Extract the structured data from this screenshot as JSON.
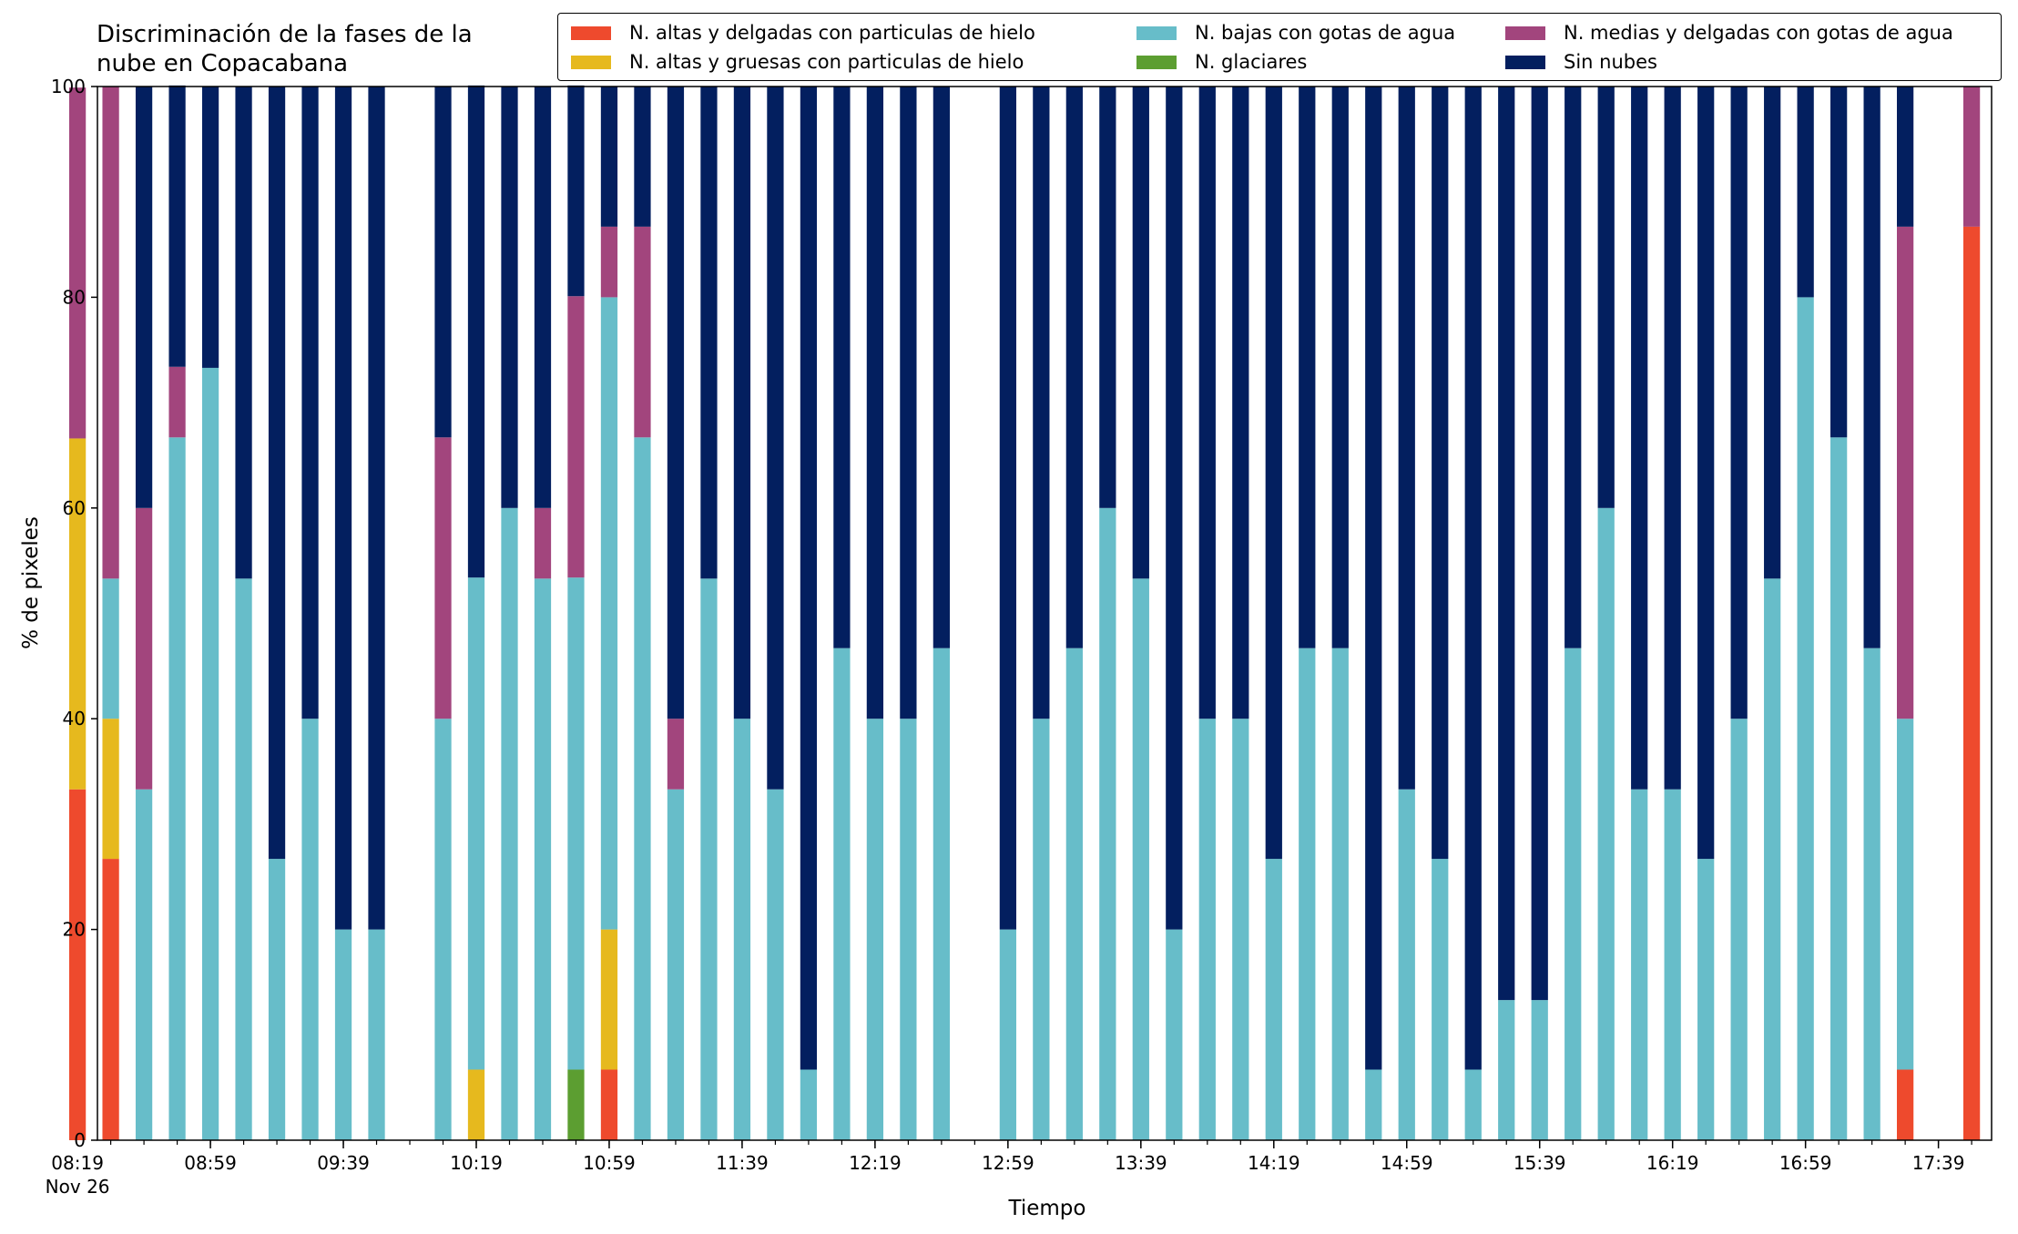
{
  "chart_data": {
    "type": "bar",
    "stacked": true,
    "title": "Discriminación de la fases de la\nnube en Copacabana",
    "xlabel": "Tiempo",
    "ylabel": "% de pixeles",
    "ylim": [
      0,
      100
    ],
    "yticks": [
      "0",
      "20",
      "40",
      "60",
      "80",
      "100"
    ],
    "date_label": "Nov 26",
    "xlim_minutes": [
      505,
      1075
    ],
    "xticks": [
      {
        "minute": 499,
        "label": "08:19"
      },
      {
        "minute": 539,
        "label": "08:59"
      },
      {
        "minute": 579,
        "label": "09:39"
      },
      {
        "minute": 619,
        "label": "10:19"
      },
      {
        "minute": 659,
        "label": "10:59"
      },
      {
        "minute": 699,
        "label": "11:39"
      },
      {
        "minute": 739,
        "label": "12:19"
      },
      {
        "minute": 779,
        "label": "12:59"
      },
      {
        "minute": 819,
        "label": "13:39"
      },
      {
        "minute": 859,
        "label": "14:19"
      },
      {
        "minute": 899,
        "label": "14:59"
      },
      {
        "minute": 939,
        "label": "15:39"
      },
      {
        "minute": 979,
        "label": "16:19"
      },
      {
        "minute": 1019,
        "label": "16:59"
      },
      {
        "minute": 1059,
        "label": "17:39"
      }
    ],
    "grid": false,
    "legend_position": "top-right",
    "series_order": [
      "altas_delgadas",
      "altas_gruesas",
      "glaciares",
      "bajas",
      "medias",
      "sin_nubes"
    ],
    "series": [
      {
        "key": "altas_delgadas",
        "name": "N. altas y delgadas con particulas de hielo",
        "color": "#EE4A2D"
      },
      {
        "key": "altas_gruesas",
        "name": "N. altas y gruesas con particulas de hielo",
        "color": "#E6B91E"
      },
      {
        "key": "bajas",
        "name": "N. bajas con gotas de agua",
        "color": "#67BDC9"
      },
      {
        "key": "glaciares",
        "name": "N. glaciares",
        "color": "#5C9E31"
      },
      {
        "key": "medias",
        "name": "N. medias y delgadas con gotas de agua",
        "color": "#A2457D"
      },
      {
        "key": "sin_nubes",
        "name": "Sin nubes",
        "color": "#031F5F"
      }
    ],
    "bar_width_minutes": 5,
    "bars": [
      {
        "time": "08:19",
        "altas_delgadas": 33.3,
        "altas_gruesas": 33.3,
        "glaciares": 0,
        "bajas": 0,
        "medias": 33.3,
        "sin_nubes": 0
      },
      {
        "time": "08:29",
        "altas_delgadas": 26.7,
        "altas_gruesas": 13.3,
        "glaciares": 0,
        "bajas": 13.3,
        "medias": 46.7,
        "sin_nubes": 0
      },
      {
        "time": "08:39",
        "altas_delgadas": 0,
        "altas_gruesas": 0,
        "glaciares": 0,
        "bajas": 33.3,
        "medias": 26.7,
        "sin_nubes": 40.0
      },
      {
        "time": "08:49",
        "altas_delgadas": 0,
        "altas_gruesas": 0,
        "glaciares": 0,
        "bajas": 66.7,
        "medias": 6.7,
        "sin_nubes": 26.7
      },
      {
        "time": "08:59",
        "altas_delgadas": 0,
        "altas_gruesas": 0,
        "glaciares": 0,
        "bajas": 73.3,
        "medias": 0,
        "sin_nubes": 26.7
      },
      {
        "time": "09:09",
        "altas_delgadas": 0,
        "altas_gruesas": 0,
        "glaciares": 0,
        "bajas": 53.3,
        "medias": 0,
        "sin_nubes": 46.7
      },
      {
        "time": "09:19",
        "altas_delgadas": 0,
        "altas_gruesas": 0,
        "glaciares": 0,
        "bajas": 26.7,
        "medias": 0,
        "sin_nubes": 73.3
      },
      {
        "time": "09:29",
        "altas_delgadas": 0,
        "altas_gruesas": 0,
        "glaciares": 0,
        "bajas": 40.0,
        "medias": 0,
        "sin_nubes": 60.0
      },
      {
        "time": "09:39",
        "altas_delgadas": 0,
        "altas_gruesas": 0,
        "glaciares": 0,
        "bajas": 20.0,
        "medias": 0,
        "sin_nubes": 80.0
      },
      {
        "time": "09:49",
        "altas_delgadas": 0,
        "altas_gruesas": 0,
        "glaciares": 0,
        "bajas": 20.0,
        "medias": 0,
        "sin_nubes": 80.0
      },
      {
        "time": "10:09",
        "altas_delgadas": 0,
        "altas_gruesas": 0,
        "glaciares": 0,
        "bajas": 40.0,
        "medias": 26.7,
        "sin_nubes": 33.3
      },
      {
        "time": "10:19",
        "altas_delgadas": 0,
        "altas_gruesas": 6.7,
        "glaciares": 0,
        "bajas": 46.7,
        "medias": 0,
        "sin_nubes": 46.7
      },
      {
        "time": "10:29",
        "altas_delgadas": 0,
        "altas_gruesas": 0,
        "glaciares": 0,
        "bajas": 60.0,
        "medias": 0,
        "sin_nubes": 40.0
      },
      {
        "time": "10:39",
        "altas_delgadas": 0,
        "altas_gruesas": 0,
        "glaciares": 0,
        "bajas": 53.3,
        "medias": 6.7,
        "sin_nubes": 40.0
      },
      {
        "time": "10:49",
        "altas_delgadas": 0,
        "altas_gruesas": 0,
        "glaciares": 6.7,
        "bajas": 46.7,
        "medias": 26.7,
        "sin_nubes": 20.0
      },
      {
        "time": "10:59",
        "altas_delgadas": 6.7,
        "altas_gruesas": 13.3,
        "glaciares": 0,
        "bajas": 60.0,
        "medias": 6.7,
        "sin_nubes": 13.3
      },
      {
        "time": "11:09",
        "altas_delgadas": 0,
        "altas_gruesas": 0,
        "glaciares": 0,
        "bajas": 66.7,
        "medias": 20.0,
        "sin_nubes": 13.3
      },
      {
        "time": "11:19",
        "altas_delgadas": 0,
        "altas_gruesas": 0,
        "glaciares": 0,
        "bajas": 33.3,
        "medias": 6.7,
        "sin_nubes": 60.0
      },
      {
        "time": "11:29",
        "altas_delgadas": 0,
        "altas_gruesas": 0,
        "glaciares": 0,
        "bajas": 53.3,
        "medias": 0,
        "sin_nubes": 46.7
      },
      {
        "time": "11:39",
        "altas_delgadas": 0,
        "altas_gruesas": 0,
        "glaciares": 0,
        "bajas": 40.0,
        "medias": 0,
        "sin_nubes": 60.0
      },
      {
        "time": "11:49",
        "altas_delgadas": 0,
        "altas_gruesas": 0,
        "glaciares": 0,
        "bajas": 33.3,
        "medias": 0,
        "sin_nubes": 66.7
      },
      {
        "time": "11:59",
        "altas_delgadas": 0,
        "altas_gruesas": 0,
        "glaciares": 0,
        "bajas": 6.7,
        "medias": 0,
        "sin_nubes": 93.3
      },
      {
        "time": "12:09",
        "altas_delgadas": 0,
        "altas_gruesas": 0,
        "glaciares": 0,
        "bajas": 46.7,
        "medias": 0,
        "sin_nubes": 53.3
      },
      {
        "time": "12:19",
        "altas_delgadas": 0,
        "altas_gruesas": 0,
        "glaciares": 0,
        "bajas": 40.0,
        "medias": 0,
        "sin_nubes": 60.0
      },
      {
        "time": "12:29",
        "altas_delgadas": 0,
        "altas_gruesas": 0,
        "glaciares": 0,
        "bajas": 40.0,
        "medias": 0,
        "sin_nubes": 60.0
      },
      {
        "time": "12:39",
        "altas_delgadas": 0,
        "altas_gruesas": 0,
        "glaciares": 0,
        "bajas": 46.7,
        "medias": 0,
        "sin_nubes": 53.3
      },
      {
        "time": "12:59",
        "altas_delgadas": 0,
        "altas_gruesas": 0,
        "glaciares": 0,
        "bajas": 20.0,
        "medias": 0,
        "sin_nubes": 80.0
      },
      {
        "time": "13:09",
        "altas_delgadas": 0,
        "altas_gruesas": 0,
        "glaciares": 0,
        "bajas": 40.0,
        "medias": 0,
        "sin_nubes": 60.0
      },
      {
        "time": "13:19",
        "altas_delgadas": 0,
        "altas_gruesas": 0,
        "glaciares": 0,
        "bajas": 46.7,
        "medias": 0,
        "sin_nubes": 53.3
      },
      {
        "time": "13:29",
        "altas_delgadas": 0,
        "altas_gruesas": 0,
        "glaciares": 0,
        "bajas": 60.0,
        "medias": 0,
        "sin_nubes": 40.0
      },
      {
        "time": "13:39",
        "altas_delgadas": 0,
        "altas_gruesas": 0,
        "glaciares": 0,
        "bajas": 53.3,
        "medias": 0,
        "sin_nubes": 46.7
      },
      {
        "time": "13:49",
        "altas_delgadas": 0,
        "altas_gruesas": 0,
        "glaciares": 0,
        "bajas": 20.0,
        "medias": 0,
        "sin_nubes": 80.0
      },
      {
        "time": "13:59",
        "altas_delgadas": 0,
        "altas_gruesas": 0,
        "glaciares": 0,
        "bajas": 40.0,
        "medias": 0,
        "sin_nubes": 60.0
      },
      {
        "time": "14:09",
        "altas_delgadas": 0,
        "altas_gruesas": 0,
        "glaciares": 0,
        "bajas": 40.0,
        "medias": 0,
        "sin_nubes": 60.0
      },
      {
        "time": "14:19",
        "altas_delgadas": 0,
        "altas_gruesas": 0,
        "glaciares": 0,
        "bajas": 26.7,
        "medias": 0,
        "sin_nubes": 73.3
      },
      {
        "time": "14:29",
        "altas_delgadas": 0,
        "altas_gruesas": 0,
        "glaciares": 0,
        "bajas": 46.7,
        "medias": 0,
        "sin_nubes": 53.3
      },
      {
        "time": "14:39",
        "altas_delgadas": 0,
        "altas_gruesas": 0,
        "glaciares": 0,
        "bajas": 46.7,
        "medias": 0,
        "sin_nubes": 53.3
      },
      {
        "time": "14:49",
        "altas_delgadas": 0,
        "altas_gruesas": 0,
        "glaciares": 0,
        "bajas": 6.7,
        "medias": 0,
        "sin_nubes": 93.3
      },
      {
        "time": "14:59",
        "altas_delgadas": 0,
        "altas_gruesas": 0,
        "glaciares": 0,
        "bajas": 33.3,
        "medias": 0,
        "sin_nubes": 66.7
      },
      {
        "time": "15:09",
        "altas_delgadas": 0,
        "altas_gruesas": 0,
        "glaciares": 0,
        "bajas": 26.7,
        "medias": 0,
        "sin_nubes": 73.3
      },
      {
        "time": "15:19",
        "altas_delgadas": 0,
        "altas_gruesas": 0,
        "glaciares": 0,
        "bajas": 6.7,
        "medias": 0,
        "sin_nubes": 93.3
      },
      {
        "time": "15:29",
        "altas_delgadas": 0,
        "altas_gruesas": 0,
        "glaciares": 0,
        "bajas": 13.3,
        "medias": 0,
        "sin_nubes": 86.7
      },
      {
        "time": "15:39",
        "altas_delgadas": 0,
        "altas_gruesas": 0,
        "glaciares": 0,
        "bajas": 13.3,
        "medias": 0,
        "sin_nubes": 86.7
      },
      {
        "time": "15:49",
        "altas_delgadas": 0,
        "altas_gruesas": 0,
        "glaciares": 0,
        "bajas": 46.7,
        "medias": 0,
        "sin_nubes": 53.3
      },
      {
        "time": "15:59",
        "altas_delgadas": 0,
        "altas_gruesas": 0,
        "glaciares": 0,
        "bajas": 60.0,
        "medias": 0,
        "sin_nubes": 40.0
      },
      {
        "time": "16:09",
        "altas_delgadas": 0,
        "altas_gruesas": 0,
        "glaciares": 0,
        "bajas": 33.3,
        "medias": 0,
        "sin_nubes": 66.7
      },
      {
        "time": "16:19",
        "altas_delgadas": 0,
        "altas_gruesas": 0,
        "glaciares": 0,
        "bajas": 33.3,
        "medias": 0,
        "sin_nubes": 66.7
      },
      {
        "time": "16:29",
        "altas_delgadas": 0,
        "altas_gruesas": 0,
        "glaciares": 0,
        "bajas": 26.7,
        "medias": 0,
        "sin_nubes": 73.3
      },
      {
        "time": "16:39",
        "altas_delgadas": 0,
        "altas_gruesas": 0,
        "glaciares": 0,
        "bajas": 40.0,
        "medias": 0,
        "sin_nubes": 60.0
      },
      {
        "time": "16:49",
        "altas_delgadas": 0,
        "altas_gruesas": 0,
        "glaciares": 0,
        "bajas": 53.3,
        "medias": 0,
        "sin_nubes": 46.7
      },
      {
        "time": "16:59",
        "altas_delgadas": 0,
        "altas_gruesas": 0,
        "glaciares": 0,
        "bajas": 80.0,
        "medias": 0,
        "sin_nubes": 20.0
      },
      {
        "time": "17:09",
        "altas_delgadas": 0,
        "altas_gruesas": 0,
        "glaciares": 0,
        "bajas": 66.7,
        "medias": 0,
        "sin_nubes": 33.3
      },
      {
        "time": "17:19",
        "altas_delgadas": 0,
        "altas_gruesas": 0,
        "glaciares": 0,
        "bajas": 46.7,
        "medias": 0,
        "sin_nubes": 53.3
      },
      {
        "time": "17:29",
        "altas_delgadas": 6.7,
        "altas_gruesas": 0,
        "glaciares": 0,
        "bajas": 33.3,
        "medias": 46.7,
        "sin_nubes": 13.3
      },
      {
        "time": "17:49",
        "altas_delgadas": 86.7,
        "altas_gruesas": 0,
        "glaciares": 0,
        "bajas": 0,
        "medias": 13.3,
        "sin_nubes": 0
      }
    ]
  }
}
